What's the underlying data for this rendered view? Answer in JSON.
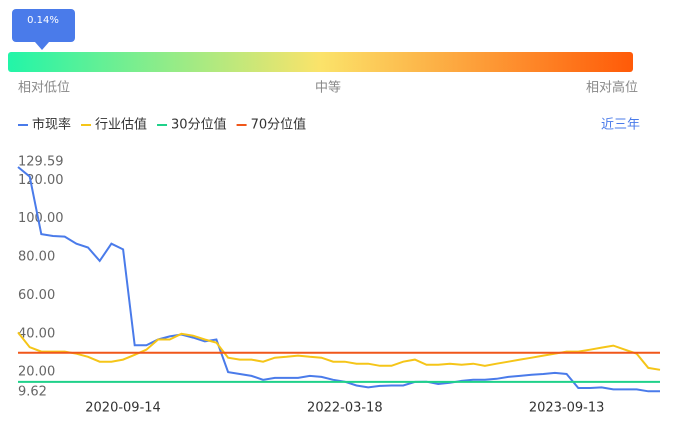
{
  "gauge": {
    "marker_label": "0.14%",
    "low_label": "相对低位",
    "mid_label": "中等",
    "high_label": "相对高位"
  },
  "range_link": "近三年",
  "chart_data": {
    "type": "line",
    "categories": [
      null,
      null,
      null,
      null,
      null,
      null,
      null,
      null,
      null,
      "2020-09-14",
      null,
      null,
      null,
      null,
      null,
      null,
      null,
      null,
      null,
      null,
      null,
      null,
      null,
      null,
      null,
      null,
      null,
      null,
      "2022-03-18",
      null,
      null,
      null,
      null,
      null,
      null,
      null,
      null,
      null,
      null,
      null,
      null,
      null,
      null,
      null,
      null,
      null,
      null,
      "2023-09-13",
      null,
      null,
      null,
      null,
      null,
      null,
      null,
      null
    ],
    "ylim": [
      9.62,
      129.59
    ],
    "yticks": [
      9.62,
      {
        "value": 20,
        "label": "20.00"
      },
      {
        "value": 40,
        "label": "40.00"
      },
      {
        "value": 60,
        "label": "60.00"
      },
      {
        "value": 80,
        "label": "80.00"
      },
      {
        "value": 100,
        "label": "100.00"
      },
      {
        "value": 120,
        "label": "120.00"
      },
      129.59
    ],
    "grid": false,
    "series": [
      {
        "name": "市现率",
        "color": "#4a7bea",
        "values": [
          127,
          122,
          92,
          91,
          90.7,
          87,
          85,
          78,
          87,
          84,
          34,
          34,
          37,
          38.6,
          39.6,
          38,
          36,
          37,
          20,
          19,
          18,
          16,
          17,
          17,
          17,
          18,
          17.5,
          16,
          15,
          13,
          12,
          12.8,
          13,
          13,
          14.9,
          15,
          13.8,
          14.4,
          15.4,
          16,
          16,
          16.5,
          17.5,
          18,
          18.6,
          19,
          19.6,
          19,
          11.7,
          11.7,
          12,
          11,
          11,
          11,
          10,
          10
        ]
      },
      {
        "name": "行业估值",
        "color": "#f5c518",
        "values": [
          40.7,
          33,
          30.7,
          30.7,
          30.7,
          29.6,
          28,
          25.4,
          25.4,
          26.5,
          29,
          31.7,
          37,
          37,
          40,
          39,
          37,
          35.4,
          27.5,
          26.5,
          26.5,
          25.4,
          27.5,
          28,
          28.6,
          28,
          27.5,
          25.4,
          25.4,
          24.4,
          24.4,
          23.3,
          23.3,
          25.4,
          26.5,
          23.8,
          23.8,
          24.4,
          23.8,
          24.4,
          23.3,
          24.4,
          25.4,
          26.5,
          27.5,
          28.6,
          29.6,
          30.7,
          30.7,
          31.7,
          32.8,
          33.8,
          31.7,
          29.6,
          22.2,
          21.2
        ]
      },
      {
        "name": "30分位值",
        "color": "#1fd18a",
        "values": [
          14.9,
          14.9,
          14.9,
          14.9,
          14.9,
          14.9,
          14.9,
          14.9,
          14.9,
          14.9,
          14.9,
          14.9,
          14.9,
          14.9,
          14.9,
          14.9,
          14.9,
          14.9,
          14.9,
          14.9,
          14.9,
          14.9,
          14.9,
          14.9,
          14.9,
          14.9,
          14.9,
          14.9,
          14.9,
          14.9,
          14.9,
          14.9,
          14.9,
          14.9,
          14.9,
          14.9,
          14.9,
          14.9,
          14.9,
          14.9,
          14.9,
          14.9,
          14.9,
          14.9,
          14.9,
          14.9,
          14.9,
          14.9,
          14.9,
          14.9,
          14.9,
          14.9,
          14.9,
          14.9,
          14.9,
          14.9
        ]
      },
      {
        "name": "70分位值",
        "color": "#f0571a",
        "values": [
          30.1,
          30.1,
          30.1,
          30.1,
          30.1,
          30.1,
          30.1,
          30.1,
          30.1,
          30.1,
          30.1,
          30.1,
          30.1,
          30.1,
          30.1,
          30.1,
          30.1,
          30.1,
          30.1,
          30.1,
          30.1,
          30.1,
          30.1,
          30.1,
          30.1,
          30.1,
          30.1,
          30.1,
          30.1,
          30.1,
          30.1,
          30.1,
          30.1,
          30.1,
          30.1,
          30.1,
          30.1,
          30.1,
          30.1,
          30.1,
          30.1,
          30.1,
          30.1,
          30.1,
          30.1,
          30.1,
          30.1,
          30.1,
          30.1,
          30.1,
          30.1,
          30.1,
          30.1,
          30.1,
          30.1,
          30.1
        ]
      }
    ]
  }
}
